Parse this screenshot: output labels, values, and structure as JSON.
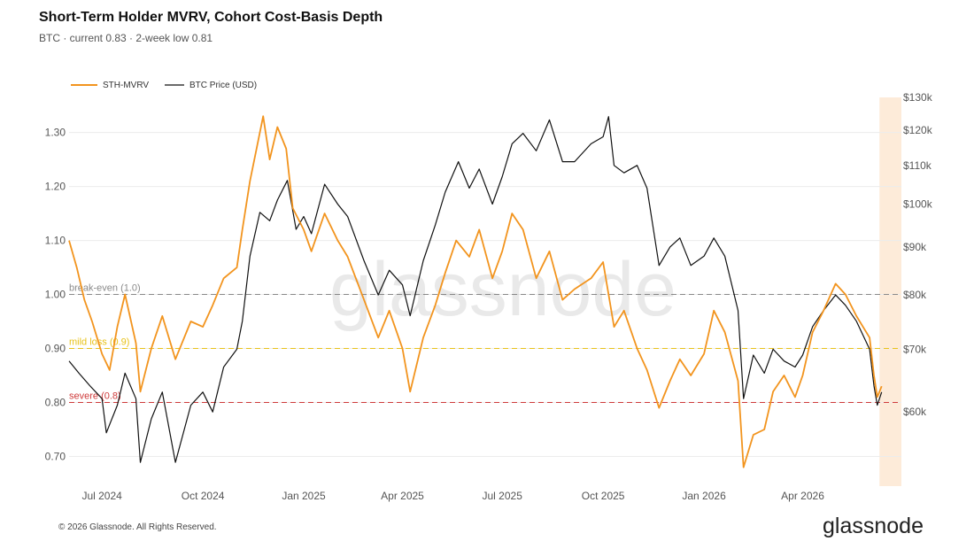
{
  "header": {
    "title": "Short-Term Holder MVRV, Cohort Cost-Basis Depth",
    "subtitle": "BTC · current 0.83 · 2-week low 0.81"
  },
  "footer": {
    "copyright": "© 2026 Glassnode. All Rights Reserved.",
    "logo": "glassnode",
    "watermark": "glassnode"
  },
  "chart_data": {
    "type": "line",
    "title": "Short-Term Holder MVRV, Cohort Cost-Basis Depth",
    "x_axis": {
      "type": "date",
      "range": [
        "2024-06-01",
        "2026-06-30"
      ],
      "ticks": [
        {
          "label": "Jul 2024",
          "date": "2024-07-01"
        },
        {
          "label": "Oct 2024",
          "date": "2024-10-01"
        },
        {
          "label": "Jan 2025",
          "date": "2025-01-01"
        },
        {
          "label": "Apr 2025",
          "date": "2025-04-01"
        },
        {
          "label": "Jul 2025",
          "date": "2025-07-01"
        },
        {
          "label": "Oct 2025",
          "date": "2025-10-01"
        },
        {
          "label": "Jan 2026",
          "date": "2026-01-01"
        },
        {
          "label": "Apr 2026",
          "date": "2026-04-01"
        }
      ]
    },
    "y_axis_left": {
      "ylim": [
        0.645,
        1.365
      ],
      "ticks": [
        0.7,
        0.8,
        0.9,
        1.0,
        1.1,
        1.2,
        1.3
      ],
      "tick_labels": [
        "0.70",
        "0.80",
        "0.90",
        "1.00",
        "1.10",
        "1.20",
        "1.30"
      ],
      "grid": true
    },
    "y_axis_right": {
      "scale": "log",
      "ylim": [
        50000,
        130000
      ],
      "ticks": [
        60000,
        70000,
        80000,
        90000,
        100000,
        110000,
        120000,
        130000
      ],
      "tick_labels": [
        "$60k",
        "$70k",
        "$80k",
        "$90k",
        "$100k",
        "$110k",
        "$120k",
        "$130k"
      ]
    },
    "legend": {
      "placement": "top-left"
    },
    "highlight_band": {
      "from": "2026-06-10",
      "to": "2026-06-30",
      "color": "#fdebd9"
    },
    "reference_lines": [
      {
        "label": "break-even (1.0)",
        "value": 1.0,
        "color": "#8a8a8a"
      },
      {
        "label": "mild loss (0.9)",
        "value": 0.9,
        "color": "#e8c21a"
      },
      {
        "label": "severe (0.8)",
        "value": 0.8,
        "color": "#cf3b3b"
      }
    ],
    "series": [
      {
        "name": "STH-MVRV",
        "axis": "left",
        "color": "#f2941e",
        "points": [
          [
            "2024-06-01",
            1.1
          ],
          [
            "2024-06-08",
            1.05
          ],
          [
            "2024-06-15",
            0.99
          ],
          [
            "2024-06-22",
            0.95
          ],
          [
            "2024-07-01",
            0.89
          ],
          [
            "2024-07-08",
            0.86
          ],
          [
            "2024-07-15",
            0.94
          ],
          [
            "2024-07-22",
            1.0
          ],
          [
            "2024-08-01",
            0.91
          ],
          [
            "2024-08-05",
            0.82
          ],
          [
            "2024-08-15",
            0.9
          ],
          [
            "2024-08-25",
            0.96
          ],
          [
            "2024-09-06",
            0.88
          ],
          [
            "2024-09-20",
            0.95
          ],
          [
            "2024-10-01",
            0.94
          ],
          [
            "2024-10-10",
            0.98
          ],
          [
            "2024-10-20",
            1.03
          ],
          [
            "2024-11-01",
            1.05
          ],
          [
            "2024-11-06",
            1.12
          ],
          [
            "2024-11-13",
            1.21
          ],
          [
            "2024-11-20",
            1.28
          ],
          [
            "2024-11-25",
            1.33
          ],
          [
            "2024-12-01",
            1.25
          ],
          [
            "2024-12-08",
            1.31
          ],
          [
            "2024-12-16",
            1.27
          ],
          [
            "2024-12-22",
            1.16
          ],
          [
            "2025-01-01",
            1.12
          ],
          [
            "2025-01-08",
            1.08
          ],
          [
            "2025-01-20",
            1.15
          ],
          [
            "2025-02-01",
            1.1
          ],
          [
            "2025-02-10",
            1.07
          ],
          [
            "2025-02-25",
            0.99
          ],
          [
            "2025-03-10",
            0.92
          ],
          [
            "2025-03-20",
            0.97
          ],
          [
            "2025-04-01",
            0.9
          ],
          [
            "2025-04-08",
            0.82
          ],
          [
            "2025-04-20",
            0.92
          ],
          [
            "2025-05-01",
            0.98
          ],
          [
            "2025-05-10",
            1.04
          ],
          [
            "2025-05-20",
            1.1
          ],
          [
            "2025-06-01",
            1.07
          ],
          [
            "2025-06-10",
            1.12
          ],
          [
            "2025-06-22",
            1.03
          ],
          [
            "2025-07-01",
            1.08
          ],
          [
            "2025-07-10",
            1.15
          ],
          [
            "2025-07-20",
            1.12
          ],
          [
            "2025-08-01",
            1.03
          ],
          [
            "2025-08-13",
            1.08
          ],
          [
            "2025-08-25",
            0.99
          ],
          [
            "2025-09-05",
            1.01
          ],
          [
            "2025-09-20",
            1.03
          ],
          [
            "2025-10-01",
            1.06
          ],
          [
            "2025-10-06",
            1.0
          ],
          [
            "2025-10-11",
            0.94
          ],
          [
            "2025-10-20",
            0.97
          ],
          [
            "2025-11-01",
            0.9
          ],
          [
            "2025-11-10",
            0.86
          ],
          [
            "2025-11-21",
            0.79
          ],
          [
            "2025-12-01",
            0.84
          ],
          [
            "2025-12-10",
            0.88
          ],
          [
            "2025-12-20",
            0.85
          ],
          [
            "2026-01-01",
            0.89
          ],
          [
            "2026-01-10",
            0.97
          ],
          [
            "2026-01-20",
            0.93
          ],
          [
            "2026-02-01",
            0.84
          ],
          [
            "2026-02-06",
            0.68
          ],
          [
            "2026-02-15",
            0.74
          ],
          [
            "2026-02-25",
            0.75
          ],
          [
            "2026-03-05",
            0.82
          ],
          [
            "2026-03-15",
            0.85
          ],
          [
            "2026-03-25",
            0.81
          ],
          [
            "2026-04-01",
            0.85
          ],
          [
            "2026-04-10",
            0.93
          ],
          [
            "2026-04-20",
            0.97
          ],
          [
            "2026-05-01",
            1.02
          ],
          [
            "2026-05-10",
            1.0
          ],
          [
            "2026-05-20",
            0.96
          ],
          [
            "2026-06-01",
            0.92
          ],
          [
            "2026-06-05",
            0.85
          ],
          [
            "2026-06-08",
            0.81
          ],
          [
            "2026-06-12",
            0.83
          ]
        ]
      },
      {
        "name": "BTC Price (USD)",
        "axis": "right",
        "color": "#111111",
        "points": [
          [
            "2024-06-01",
            68000
          ],
          [
            "2024-06-10",
            66000
          ],
          [
            "2024-06-20",
            64000
          ],
          [
            "2024-07-01",
            62000
          ],
          [
            "2024-07-05",
            57000
          ],
          [
            "2024-07-15",
            61000
          ],
          [
            "2024-07-22",
            66000
          ],
          [
            "2024-08-01",
            62000
          ],
          [
            "2024-08-05",
            53000
          ],
          [
            "2024-08-15",
            59000
          ],
          [
            "2024-08-25",
            63000
          ],
          [
            "2024-09-06",
            53000
          ],
          [
            "2024-09-20",
            61000
          ],
          [
            "2024-10-01",
            63000
          ],
          [
            "2024-10-10",
            60000
          ],
          [
            "2024-10-20",
            67000
          ],
          [
            "2024-11-01",
            70000
          ],
          [
            "2024-11-06",
            75000
          ],
          [
            "2024-11-13",
            88000
          ],
          [
            "2024-11-22",
            98000
          ],
          [
            "2024-12-01",
            96000
          ],
          [
            "2024-12-08",
            101000
          ],
          [
            "2024-12-17",
            106000
          ],
          [
            "2024-12-25",
            94000
          ],
          [
            "2025-01-01",
            97000
          ],
          [
            "2025-01-08",
            93000
          ],
          [
            "2025-01-20",
            105000
          ],
          [
            "2025-02-01",
            100000
          ],
          [
            "2025-02-10",
            97000
          ],
          [
            "2025-02-25",
            87000
          ],
          [
            "2025-03-10",
            80000
          ],
          [
            "2025-03-20",
            85000
          ],
          [
            "2025-04-01",
            82000
          ],
          [
            "2025-04-08",
            76000
          ],
          [
            "2025-04-20",
            87000
          ],
          [
            "2025-05-01",
            95000
          ],
          [
            "2025-05-10",
            103000
          ],
          [
            "2025-05-22",
            111000
          ],
          [
            "2025-06-01",
            104000
          ],
          [
            "2025-06-10",
            109000
          ],
          [
            "2025-06-22",
            100000
          ],
          [
            "2025-07-01",
            107000
          ],
          [
            "2025-07-10",
            116000
          ],
          [
            "2025-07-20",
            119000
          ],
          [
            "2025-08-01",
            114000
          ],
          [
            "2025-08-13",
            123000
          ],
          [
            "2025-08-25",
            111000
          ],
          [
            "2025-09-05",
            111000
          ],
          [
            "2025-09-20",
            116000
          ],
          [
            "2025-10-01",
            118000
          ],
          [
            "2025-10-06",
            124000
          ],
          [
            "2025-10-11",
            110000
          ],
          [
            "2025-10-20",
            108000
          ],
          [
            "2025-11-01",
            110000
          ],
          [
            "2025-11-10",
            104000
          ],
          [
            "2025-11-21",
            86000
          ],
          [
            "2025-12-01",
            90000
          ],
          [
            "2025-12-10",
            92000
          ],
          [
            "2025-12-20",
            86000
          ],
          [
            "2026-01-01",
            88000
          ],
          [
            "2026-01-10",
            92000
          ],
          [
            "2026-01-20",
            88000
          ],
          [
            "2026-02-01",
            77000
          ],
          [
            "2026-02-06",
            62000
          ],
          [
            "2026-02-15",
            69000
          ],
          [
            "2026-02-25",
            66000
          ],
          [
            "2026-03-05",
            70000
          ],
          [
            "2026-03-15",
            68000
          ],
          [
            "2026-03-25",
            67000
          ],
          [
            "2026-04-01",
            69000
          ],
          [
            "2026-04-10",
            74000
          ],
          [
            "2026-04-20",
            77000
          ],
          [
            "2026-05-01",
            80000
          ],
          [
            "2026-05-10",
            78000
          ],
          [
            "2026-05-20",
            75000
          ],
          [
            "2026-06-01",
            70000
          ],
          [
            "2026-06-05",
            64000
          ],
          [
            "2026-06-08",
            61000
          ],
          [
            "2026-06-12",
            63000
          ]
        ]
      }
    ]
  }
}
